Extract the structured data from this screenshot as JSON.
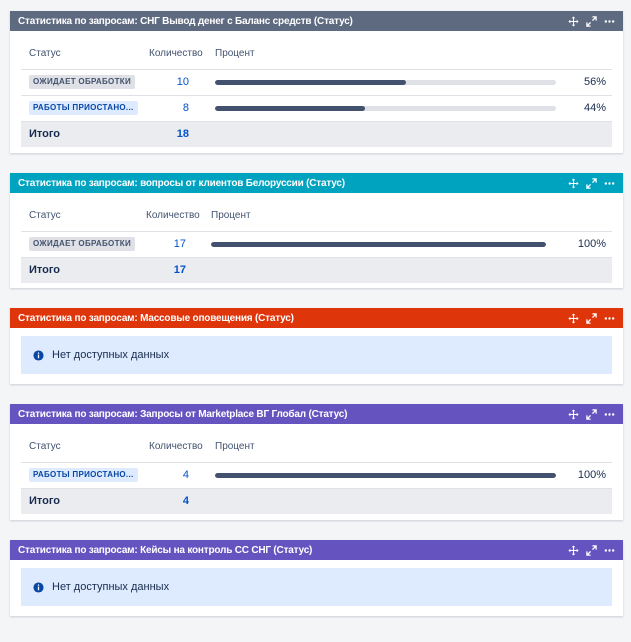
{
  "colors": {
    "header_slate": "#5e6a80",
    "header_teal": "#00a3bf",
    "header_red": "#de350b",
    "header_purple": "#6554c0",
    "bar_fill": "#42526e",
    "info_bg": "#deebff"
  },
  "icons": [
    "move-icon",
    "expand-icon",
    "more-icon",
    "info-icon"
  ],
  "gadgets": [
    {
      "title": "Статистика по запросам: СНГ Вывод денег с Баланс средств (Статус)",
      "headers": {
        "status": "Статус",
        "count": "Количество",
        "percent": "Процент"
      },
      "rows": [
        {
          "status": "ОЖИДАЕТ ОБРАБОТКИ",
          "count": "10",
          "percent": "56%",
          "fraction": 0.56
        },
        {
          "status": "РАБОТЫ ПРИОСТАНО...",
          "count": "8",
          "percent": "44%",
          "fraction": 0.44
        }
      ],
      "total_label": "Итого",
      "total_count": "18"
    },
    {
      "title": "Статистика по запросам: вопросы от клиентов Белоруссии (Статус)",
      "headers": {
        "status": "Статус",
        "count": "Количество",
        "percent": "Процент"
      },
      "rows": [
        {
          "status": "ОЖИДАЕТ ОБРАБОТКИ",
          "count": "17",
          "percent": "100%",
          "fraction": 1.0
        }
      ],
      "total_label": "Итого",
      "total_count": "17"
    },
    {
      "title": "Статистика по запросам: Массовые оповещения (Статус)",
      "nodata": "Нет доступных данных"
    },
    {
      "title": "Статистика по запросам: Запросы от Marketplace ВГ Глобал (Статус)",
      "headers": {
        "status": "Статус",
        "count": "Количество",
        "percent": "Процент"
      },
      "rows": [
        {
          "status": "РАБОТЫ ПРИОСТАНО...",
          "count": "4",
          "percent": "100%",
          "fraction": 1.0
        }
      ],
      "total_label": "Итого",
      "total_count": "4"
    },
    {
      "title": "Статистика по запросам: Кейсы на контроль СС СНГ (Статус)",
      "nodata": "Нет доступных данных"
    }
  ]
}
